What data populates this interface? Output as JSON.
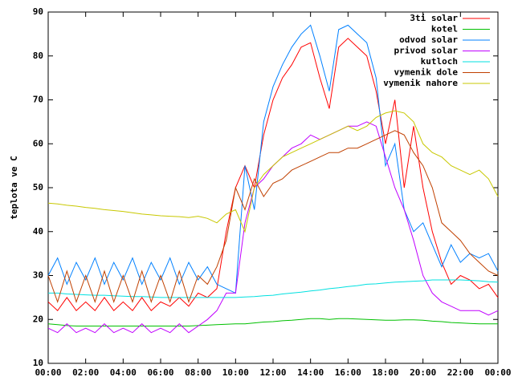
{
  "chart_data": {
    "type": "line",
    "ylabel": "teplota ve C",
    "x": [
      0,
      0.5,
      1,
      1.5,
      2,
      2.5,
      3,
      3.5,
      4,
      4.5,
      5,
      5.5,
      6,
      6.5,
      7,
      7.5,
      8,
      8.5,
      9,
      9.5,
      10,
      10.5,
      11,
      11.5,
      12,
      12.5,
      13,
      13.5,
      14,
      14.5,
      15,
      15.5,
      16,
      16.5,
      17,
      17.5,
      18,
      18.5,
      19,
      19.5,
      20,
      20.5,
      21,
      21.5,
      22,
      22.5,
      23,
      23.5,
      24
    ],
    "xlim": [
      0,
      24
    ],
    "xticks": [
      {
        "value": 0,
        "label": "00:00"
      },
      {
        "value": 2,
        "label": "02:00"
      },
      {
        "value": 4,
        "label": "04:00"
      },
      {
        "value": 6,
        "label": "06:00"
      },
      {
        "value": 8,
        "label": "08:00"
      },
      {
        "value": 10,
        "label": "10:00"
      },
      {
        "value": 12,
        "label": "12:00"
      },
      {
        "value": 14,
        "label": "14:00"
      },
      {
        "value": 16,
        "label": "16:00"
      },
      {
        "value": 18,
        "label": "18:00"
      },
      {
        "value": 20,
        "label": "20:00"
      },
      {
        "value": 22,
        "label": "22:00"
      },
      {
        "value": 24,
        "label": "00:00"
      }
    ],
    "ylim": [
      10,
      90
    ],
    "yticks": [
      10,
      20,
      30,
      40,
      50,
      60,
      70,
      80,
      90
    ],
    "legend": "top-right",
    "series": [
      {
        "name": "3ti solar",
        "color": "#ff0000",
        "values": [
          24,
          22,
          25,
          22,
          24,
          22,
          25,
          22,
          24,
          22,
          25,
          22,
          24,
          23,
          25,
          23,
          26,
          25,
          27,
          40,
          50,
          55,
          50,
          62,
          70,
          75,
          78,
          82,
          83,
          75,
          68,
          82,
          84,
          82,
          80,
          72,
          60,
          70,
          50,
          64,
          50,
          40,
          33,
          28,
          30,
          29,
          27,
          28,
          25
        ]
      },
      {
        "name": "kotel",
        "color": "#00c000",
        "values": [
          19,
          18.8,
          18.6,
          18.5,
          18.5,
          18.5,
          18.5,
          18.5,
          18.5,
          18.5,
          18.5,
          18.5,
          18.5,
          18.5,
          18.5,
          18.5,
          18.6,
          18.7,
          18.8,
          18.9,
          19,
          19,
          19.2,
          19.4,
          19.5,
          19.7,
          19.8,
          20,
          20.2,
          20.2,
          20,
          20.2,
          20.2,
          20.1,
          20,
          19.9,
          19.8,
          19.8,
          19.9,
          19.9,
          19.8,
          19.6,
          19.5,
          19.3,
          19.2,
          19.1,
          19,
          19,
          19
        ]
      },
      {
        "name": "odvod solar",
        "color": "#0080ff",
        "values": [
          30,
          34,
          28,
          33,
          29,
          34,
          28,
          33,
          29,
          34,
          28,
          33,
          29,
          34,
          28,
          33,
          29,
          32,
          28,
          27,
          26,
          55,
          45,
          65,
          73,
          78,
          82,
          85,
          87,
          80,
          72,
          86,
          87,
          85,
          83,
          75,
          55,
          60,
          45,
          40,
          42,
          37,
          32,
          37,
          33,
          35,
          34,
          35,
          31
        ]
      },
      {
        "name": "privod solar",
        "color": "#c000ff",
        "values": [
          18,
          17,
          19,
          17,
          18,
          17,
          19,
          17,
          18,
          17,
          19,
          17,
          18,
          17,
          19,
          17,
          18.5,
          20,
          22,
          26,
          26,
          42,
          50,
          52,
          55,
          57,
          59,
          60,
          62,
          61,
          62,
          63,
          64,
          64,
          65,
          64,
          57,
          50,
          45,
          38,
          30,
          26,
          24,
          23,
          22,
          22,
          22,
          21,
          22
        ]
      },
      {
        "name": "kutloch",
        "color": "#00e0e0",
        "values": [
          26,
          26,
          25.8,
          25.7,
          25.6,
          25.5,
          25.5,
          25.4,
          25.3,
          25.2,
          25.2,
          25.1,
          25,
          25,
          25,
          25,
          25,
          25,
          25,
          25,
          25,
          25.1,
          25.2,
          25.4,
          25.5,
          25.8,
          26,
          26.2,
          26.5,
          26.7,
          27,
          27.2,
          27.5,
          27.7,
          28,
          28.1,
          28.3,
          28.5,
          28.6,
          28.7,
          28.8,
          29,
          29,
          29,
          29,
          28.9,
          28.8,
          28.6,
          28.5
        ]
      },
      {
        "name": "vymenik dole",
        "color": "#c04000",
        "values": [
          30,
          24,
          31,
          24,
          30,
          24,
          31,
          24,
          30,
          24,
          31,
          24,
          30,
          24,
          31,
          24,
          30,
          28,
          32,
          38,
          50,
          45,
          52,
          48,
          51,
          52,
          54,
          55,
          56,
          57,
          58,
          58,
          59,
          59,
          60,
          61,
          62,
          63,
          62,
          58,
          55,
          50,
          42,
          40,
          38,
          35,
          33,
          31,
          30
        ]
      },
      {
        "name": "vymenik nahore",
        "color": "#c8c800",
        "values": [
          46.5,
          46.3,
          46,
          45.8,
          45.5,
          45.3,
          45,
          44.8,
          44.6,
          44.3,
          44,
          43.8,
          43.6,
          43.5,
          43.4,
          43.2,
          43.5,
          43,
          42,
          44,
          45,
          40,
          50,
          53,
          55,
          57,
          58,
          59,
          60,
          61,
          62,
          63,
          64,
          63,
          64,
          66,
          67,
          67.5,
          67,
          65,
          60,
          58,
          57,
          55,
          54,
          53,
          54,
          52,
          48
        ]
      }
    ]
  }
}
